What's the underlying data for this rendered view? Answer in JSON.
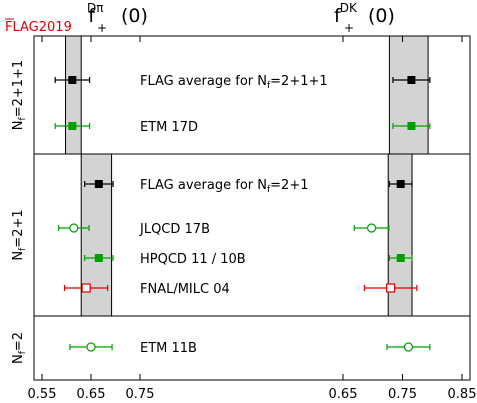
{
  "watermark": "FLAG2019",
  "colors": {
    "flag_band": "#d3d3d3",
    "black": "#000000",
    "green": "#00a000",
    "red": "#e00000",
    "watermark": "#e00000"
  },
  "chart_data": {
    "type": "scatter",
    "panels": [
      {
        "title_main": "f",
        "title_sub": "+",
        "title_sup": "Dπ",
        "title_arg": "(0)",
        "x_ticks": [
          0.55,
          0.65,
          0.75
        ],
        "xlim": [
          0.54,
          0.82
        ]
      },
      {
        "title_main": "f",
        "title_sub": "+",
        "title_sup": "DK",
        "title_arg": "(0)",
        "x_ticks": [
          0.65,
          0.75,
          0.85
        ],
        "xlim": [
          0.6,
          0.87
        ]
      }
    ],
    "groups": [
      {
        "label": "N_f=2+1+1",
        "label_main": "N",
        "label_sub": "f",
        "label_rest": "=2+1+1",
        "band": [
          [
            0.598,
            0.63
          ],
          [
            0.728,
            0.793
          ]
        ]
      },
      {
        "label": "N_f=2+1",
        "label_main": "N",
        "label_sub": "f",
        "label_rest": "=2+1",
        "band": [
          [
            0.63,
            0.692
          ],
          [
            0.726,
            0.766
          ]
        ]
      },
      {
        "label": "N_f=2",
        "label_main": "N",
        "label_sub": "f",
        "label_rest": "=2",
        "band": null
      }
    ],
    "entries": [
      {
        "group": 0,
        "label_main": "FLAG average for N",
        "label_sub": "f",
        "label_rest": "=2+1+1",
        "style": "flag",
        "color": "black",
        "dpi": [
          0.612,
          0.035
        ],
        "dk": [
          0.765,
          0.031
        ]
      },
      {
        "group": 0,
        "label": "ETM 17D",
        "style": "filled",
        "color": "green",
        "dpi": [
          0.612,
          0.035
        ],
        "dk": [
          0.765,
          0.031
        ]
      },
      {
        "group": 1,
        "label_main": "FLAG average for N",
        "label_sub": "f",
        "label_rest": "=2+1",
        "style": "flag",
        "color": "black",
        "dpi": [
          0.666,
          0.029
        ],
        "dk": [
          0.747,
          0.019
        ]
      },
      {
        "group": 1,
        "label": "JLQCD 17B",
        "style": "open",
        "color": "green",
        "dpi": [
          0.615,
          0.031
        ],
        "dk": [
          0.698,
          0.029
        ]
      },
      {
        "group": 1,
        "label": "HPQCD 11 / 10B",
        "style": "filled",
        "color": "green",
        "dpi": [
          0.666,
          0.029
        ],
        "dk": [
          0.747,
          0.019
        ]
      },
      {
        "group": 1,
        "label": "FNAL/MILC 04",
        "style": "open-square",
        "color": "red",
        "dpi": [
          0.64,
          0.044
        ],
        "dk": [
          0.73,
          0.044
        ]
      },
      {
        "group": 2,
        "label": "ETM 11B",
        "style": "open",
        "color": "green",
        "dpi": [
          0.65,
          0.043
        ],
        "dk": [
          0.76,
          0.036
        ]
      }
    ]
  }
}
